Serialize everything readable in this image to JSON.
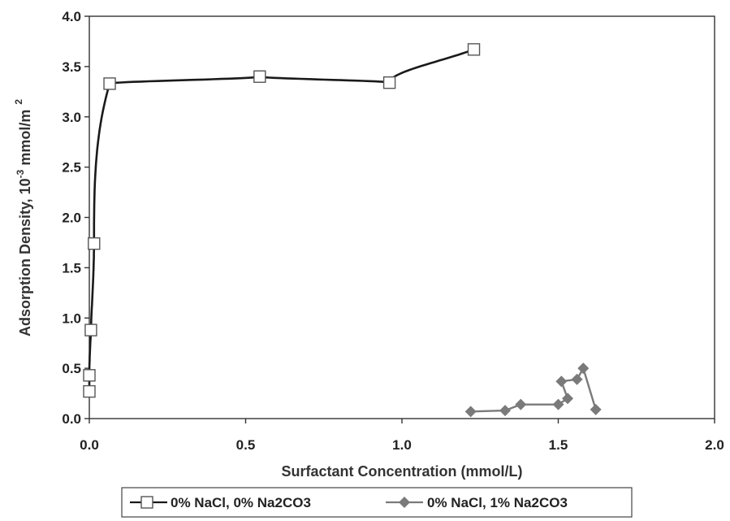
{
  "chart_data": {
    "type": "scatter",
    "xlabel": "Surfactant Concentration (mmol/L)",
    "ylabel": {
      "prefix": "Adsorption Density, 10",
      "exponent": "-3",
      "unit": " mmol/m",
      "unit_exponent": "2"
    },
    "xlim": [
      0,
      2.0
    ],
    "ylim": [
      0,
      4.0
    ],
    "xticks": [
      "0.0",
      "0.5",
      "1.0",
      "1.5",
      "2.0"
    ],
    "yticks": [
      "0.0",
      "0.5",
      "1.0",
      "1.5",
      "2.0",
      "2.5",
      "3.0",
      "3.5",
      "4.0"
    ],
    "grid": false,
    "legend_position": "bottom",
    "series": [
      {
        "name": "0% NaCl, 0% Na2CO3",
        "marker": "open-square",
        "line": "smooth",
        "color": "#1a1a1a",
        "points": [
          {
            "x": 0.0,
            "y": 0.27
          },
          {
            "x": 0.0,
            "y": 0.43
          },
          {
            "x": 0.005,
            "y": 0.88
          },
          {
            "x": 0.015,
            "y": 1.74
          },
          {
            "x": 0.065,
            "y": 3.33
          },
          {
            "x": 0.545,
            "y": 3.4
          },
          {
            "x": 0.96,
            "y": 3.34
          },
          {
            "x": 1.23,
            "y": 3.67
          }
        ]
      },
      {
        "name": "0% NaCl, 1% Na2CO3",
        "marker": "filled-diamond",
        "line": "straight",
        "color": "#7a7a7a",
        "points": [
          {
            "x": 1.22,
            "y": 0.07
          },
          {
            "x": 1.33,
            "y": 0.08
          },
          {
            "x": 1.38,
            "y": 0.14
          },
          {
            "x": 1.5,
            "y": 0.14
          },
          {
            "x": 1.53,
            "y": 0.2
          },
          {
            "x": 1.51,
            "y": 0.37
          },
          {
            "x": 1.56,
            "y": 0.39
          },
          {
            "x": 1.58,
            "y": 0.5
          },
          {
            "x": 1.62,
            "y": 0.09
          }
        ]
      }
    ]
  }
}
